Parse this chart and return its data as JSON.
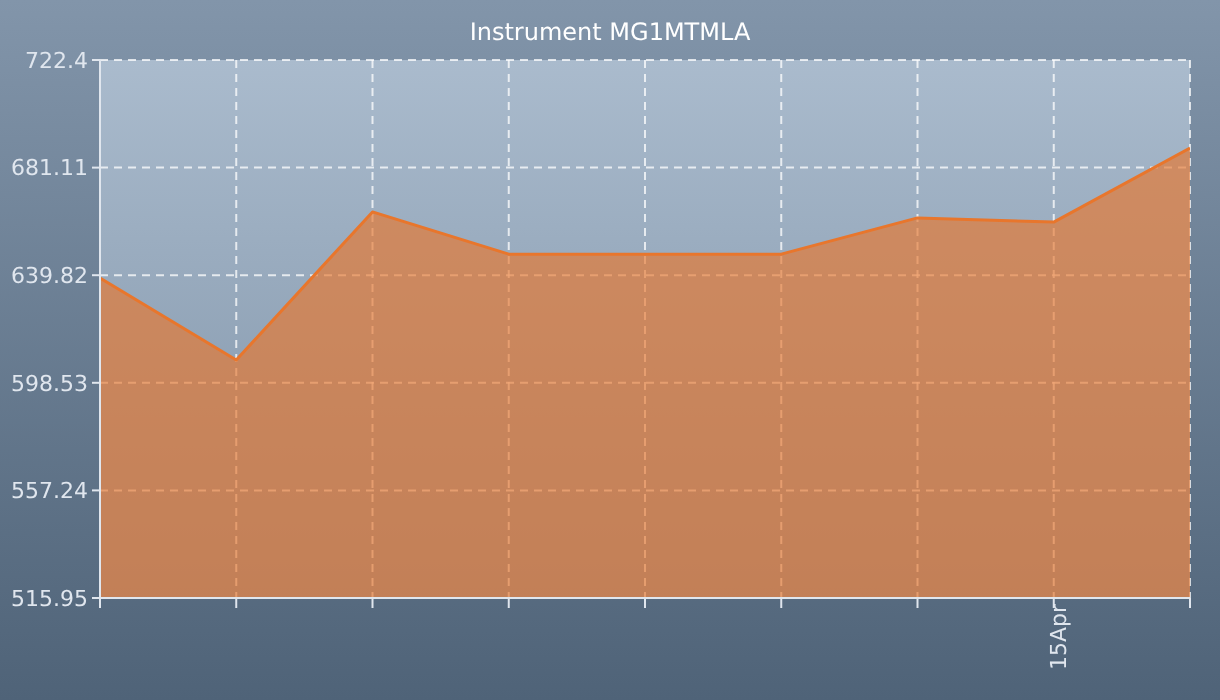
{
  "chart_data": {
    "type": "area",
    "title": "Instrument MG1MTMLA",
    "categories": [
      null,
      null,
      null,
      null,
      null,
      null,
      null,
      "15Apr",
      null
    ],
    "series": [
      {
        "color": "#e8762c",
        "values": [
          638.7,
          607.3,
          664.1,
          647.9,
          647.9,
          647.9,
          661.8,
          660.2,
          688.6
        ]
      }
    ],
    "ylim": [
      515.95,
      722.4
    ],
    "yticks": [
      515.95,
      557.24,
      598.53,
      639.82,
      681.11,
      722.4
    ],
    "grid": true,
    "legend": false
  }
}
